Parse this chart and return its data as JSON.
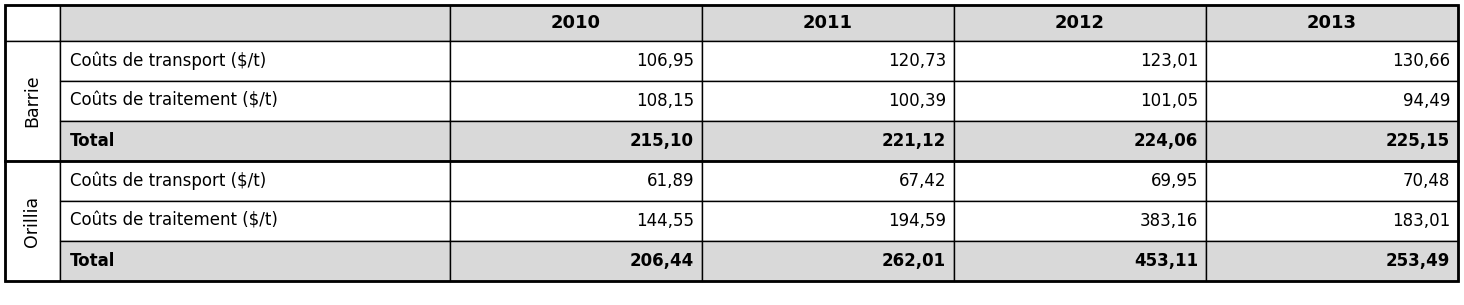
{
  "years": [
    "2010",
    "2011",
    "2012",
    "2013"
  ],
  "sections": [
    {
      "label": "Barrie",
      "rows": [
        {
          "label": "Coûts de transport ($/t)",
          "values": [
            "106,95",
            "120,73",
            "123,01",
            "130,66"
          ],
          "bold": false,
          "bg": "#ffffff"
        },
        {
          "label": "Coûts de traitement ($/t)",
          "values": [
            "108,15",
            "100,39",
            "101,05",
            "94,49"
          ],
          "bold": false,
          "bg": "#ffffff"
        },
        {
          "label": "Total",
          "values": [
            "215,10",
            "221,12",
            "224,06",
            "225,15"
          ],
          "bold": true,
          "bg": "#d9d9d9"
        }
      ]
    },
    {
      "label": "Orillia",
      "rows": [
        {
          "label": "Coûts de transport ($/t)",
          "values": [
            "61,89",
            "67,42",
            "69,95",
            "70,48"
          ],
          "bold": false,
          "bg": "#ffffff"
        },
        {
          "label": "Coûts de traitement ($/t)",
          "values": [
            "144,55",
            "194,59",
            "383,16",
            "183,01"
          ],
          "bold": false,
          "bg": "#ffffff"
        },
        {
          "label": "Total",
          "values": [
            "206,44",
            "262,01",
            "453,11",
            "253,49"
          ],
          "bold": true,
          "bg": "#d9d9d9"
        }
      ]
    }
  ],
  "header_bg": "#d9d9d9",
  "border_color": "#000000",
  "text_color": "#000000",
  "fig_width": 14.64,
  "fig_height": 3.05,
  "dpi": 100,
  "font_size": 12.0,
  "header_font_size": 13.0,
  "label_font_size": 12.5
}
